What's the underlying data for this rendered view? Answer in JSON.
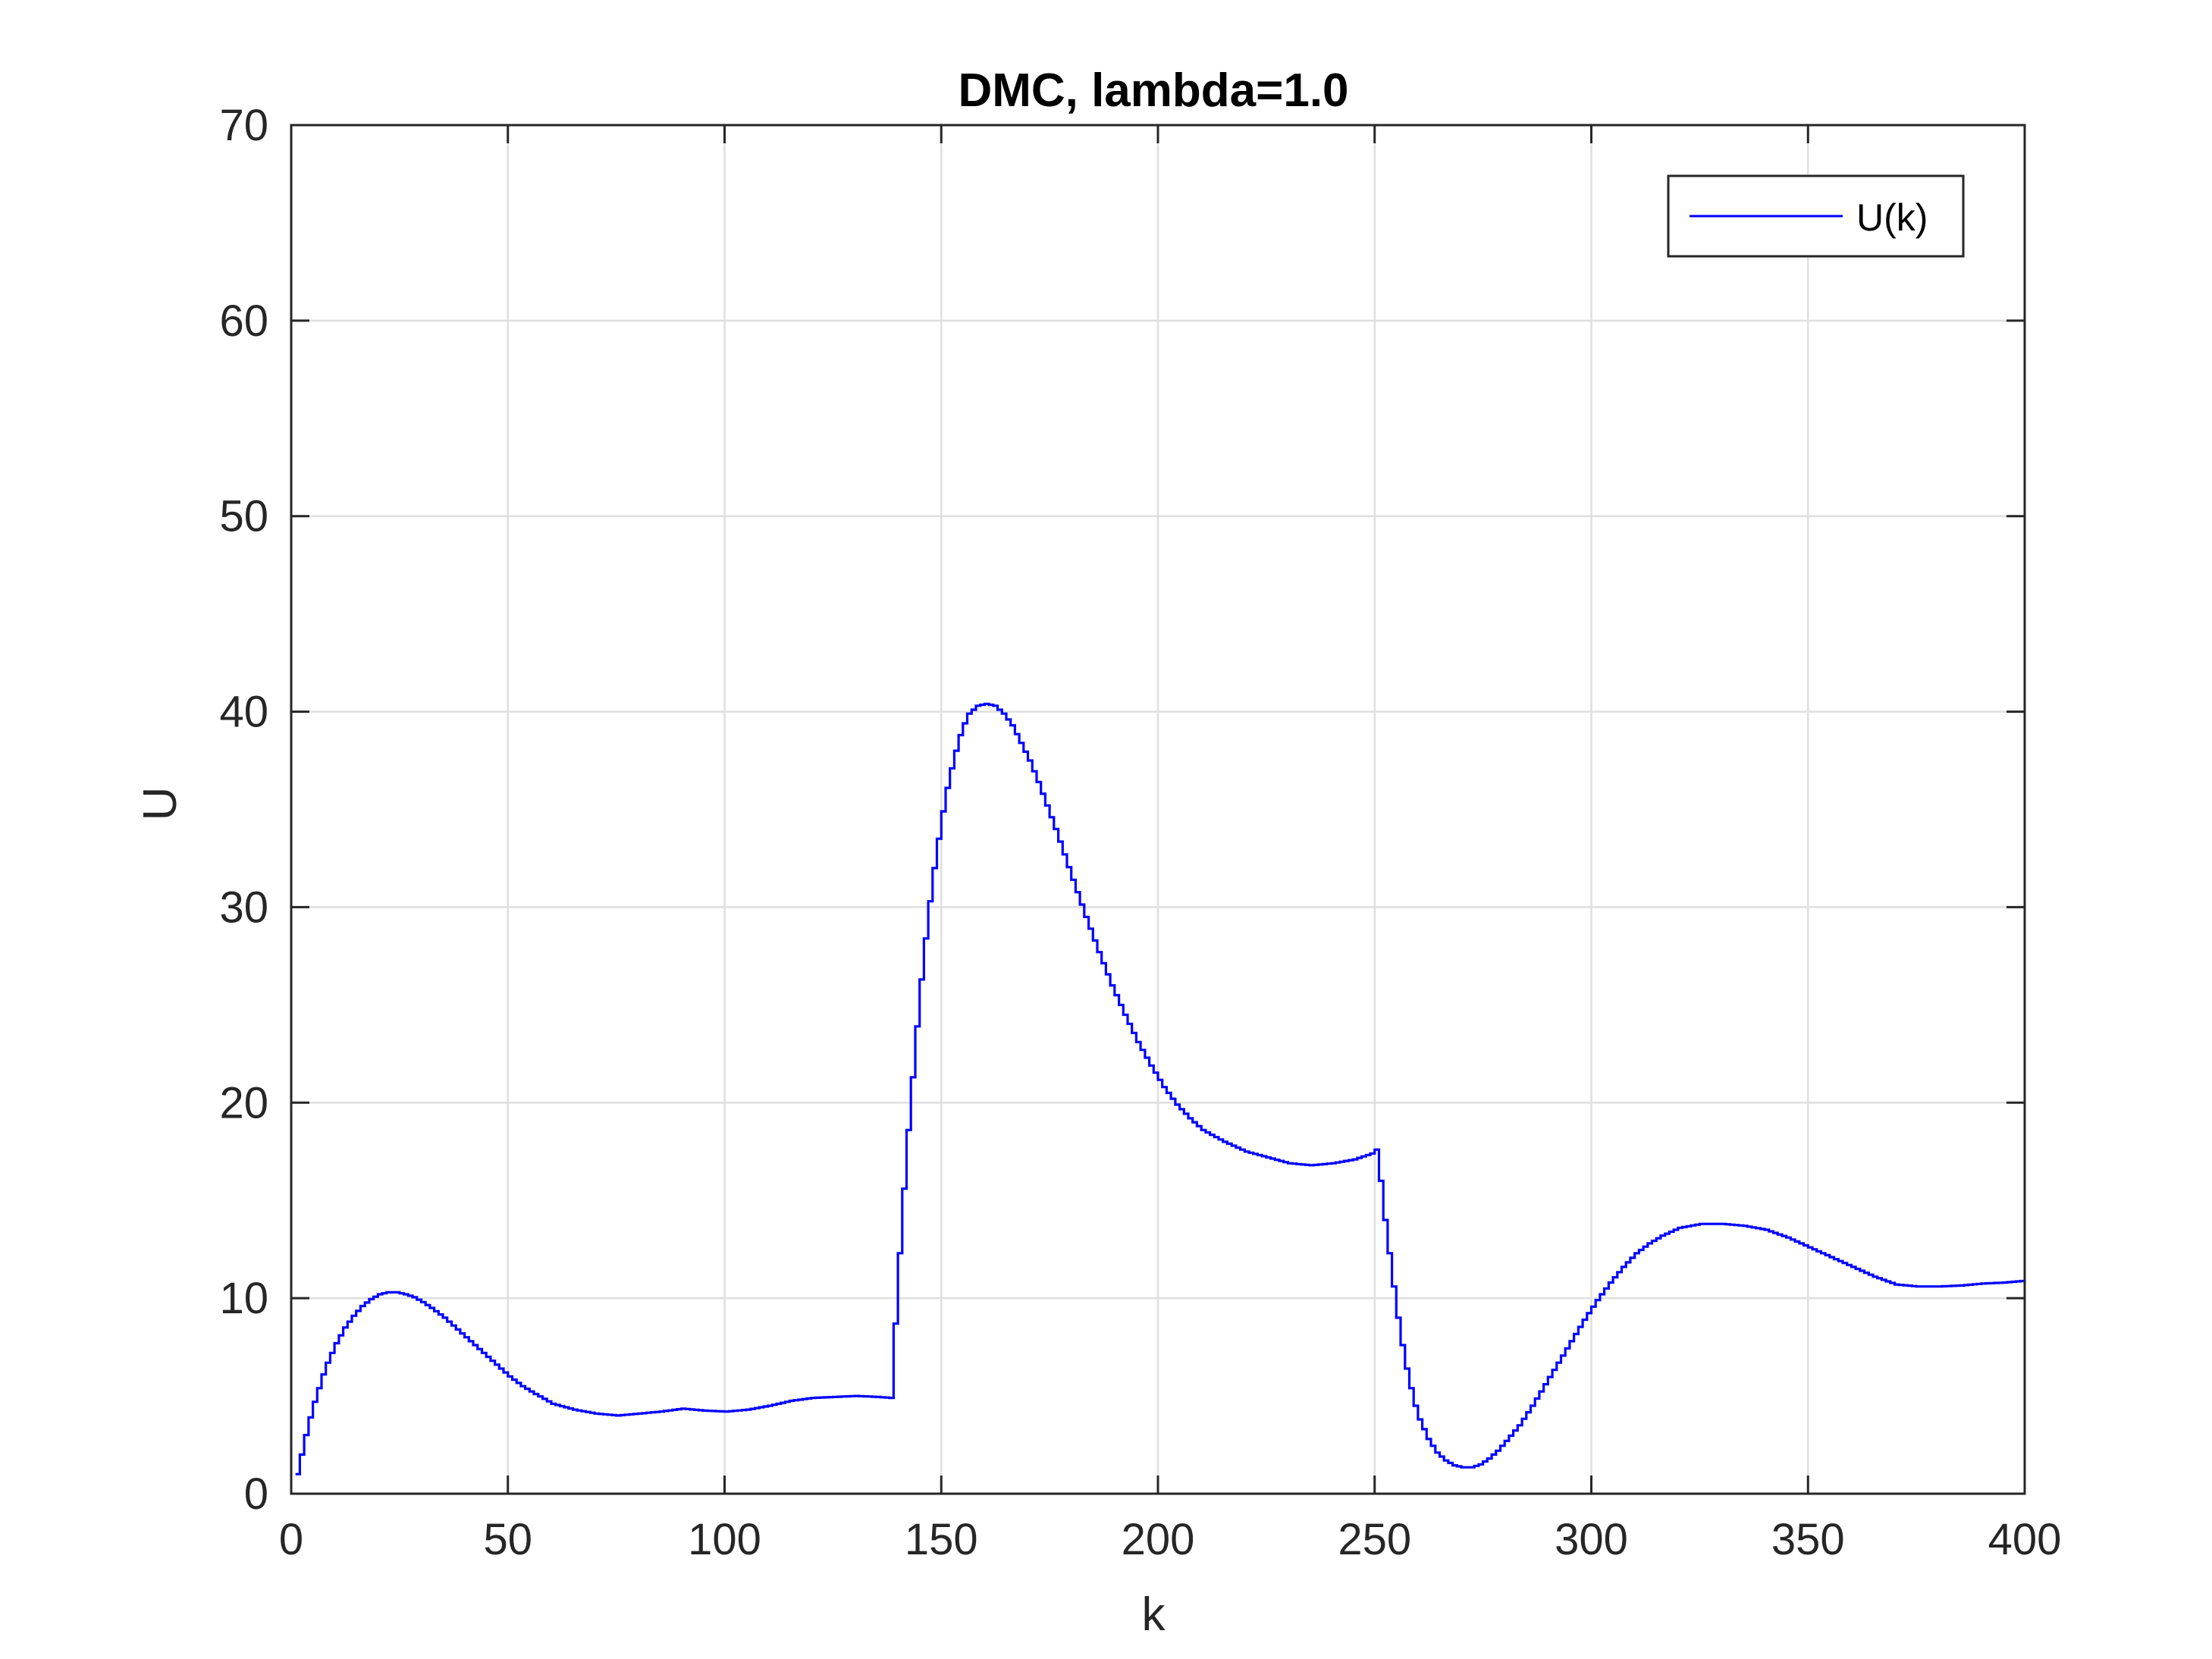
{
  "chart_data": {
    "type": "line",
    "title": "DMC, lambda=1.0",
    "xlabel": "k",
    "ylabel": "U",
    "xlim": [
      0,
      400
    ],
    "ylim": [
      0,
      70
    ],
    "xticks": [
      0,
      50,
      100,
      150,
      200,
      250,
      300,
      350,
      400
    ],
    "yticks": [
      0,
      10,
      20,
      30,
      40,
      50,
      60,
      70
    ],
    "grid": true,
    "legend": {
      "position": "top-right",
      "entries": [
        "U(k)"
      ]
    },
    "series": [
      {
        "name": "U(k)",
        "color": "#0000ff",
        "style": "stairs",
        "points": [
          [
            1,
            1.0
          ],
          [
            2,
            2.0
          ],
          [
            3,
            3.0
          ],
          [
            4,
            3.9
          ],
          [
            5,
            4.7
          ],
          [
            6,
            5.4
          ],
          [
            7,
            6.1
          ],
          [
            8,
            6.7
          ],
          [
            10,
            7.7
          ],
          [
            12,
            8.5
          ],
          [
            14,
            9.1
          ],
          [
            16,
            9.6
          ],
          [
            18,
            9.95
          ],
          [
            20,
            10.2
          ],
          [
            22,
            10.3
          ],
          [
            24,
            10.3
          ],
          [
            26,
            10.2
          ],
          [
            28,
            10.05
          ],
          [
            30,
            9.8
          ],
          [
            32,
            9.5
          ],
          [
            35,
            9.0
          ],
          [
            38,
            8.4
          ],
          [
            41,
            7.8
          ],
          [
            44,
            7.2
          ],
          [
            47,
            6.6
          ],
          [
            50,
            6.0
          ],
          [
            53,
            5.5
          ],
          [
            56,
            5.1
          ],
          [
            60,
            4.6
          ],
          [
            65,
            4.3
          ],
          [
            70,
            4.1
          ],
          [
            75,
            4.0
          ],
          [
            80,
            4.1
          ],
          [
            85,
            4.2
          ],
          [
            90,
            4.35
          ],
          [
            95,
            4.25
          ],
          [
            100,
            4.2
          ],
          [
            105,
            4.3
          ],
          [
            110,
            4.5
          ],
          [
            115,
            4.75
          ],
          [
            120,
            4.9
          ],
          [
            125,
            4.95
          ],
          [
            130,
            5.0
          ],
          [
            135,
            4.95
          ],
          [
            138,
            4.9
          ],
          [
            139,
            8.7
          ],
          [
            140,
            12.3
          ],
          [
            141,
            15.6
          ],
          [
            142,
            18.6
          ],
          [
            143,
            21.3
          ],
          [
            144,
            23.9
          ],
          [
            145,
            26.3
          ],
          [
            146,
            28.4
          ],
          [
            147,
            30.3
          ],
          [
            148,
            32.0
          ],
          [
            149,
            33.5
          ],
          [
            150,
            34.9
          ],
          [
            151,
            36.1
          ],
          [
            152,
            37.1
          ],
          [
            153,
            38.0
          ],
          [
            154,
            38.8
          ],
          [
            155,
            39.4
          ],
          [
            156,
            39.9
          ],
          [
            158,
            40.3
          ],
          [
            160,
            40.4
          ],
          [
            162,
            40.3
          ],
          [
            164,
            39.9
          ],
          [
            166,
            39.3
          ],
          [
            168,
            38.4
          ],
          [
            170,
            37.5
          ],
          [
            172,
            36.4
          ],
          [
            174,
            35.2
          ],
          [
            176,
            34.0
          ],
          [
            178,
            32.7
          ],
          [
            180,
            31.4
          ],
          [
            183,
            29.5
          ],
          [
            186,
            27.7
          ],
          [
            189,
            26.0
          ],
          [
            192,
            24.5
          ],
          [
            195,
            23.1
          ],
          [
            198,
            21.9
          ],
          [
            201,
            20.8
          ],
          [
            204,
            19.9
          ],
          [
            207,
            19.2
          ],
          [
            210,
            18.6
          ],
          [
            215,
            18.0
          ],
          [
            220,
            17.5
          ],
          [
            225,
            17.2
          ],
          [
            230,
            16.9
          ],
          [
            235,
            16.8
          ],
          [
            240,
            16.9
          ],
          [
            245,
            17.1
          ],
          [
            249,
            17.4
          ],
          [
            250,
            17.6
          ],
          [
            251,
            16.0
          ],
          [
            252,
            14.0
          ],
          [
            253,
            12.3
          ],
          [
            254,
            10.6
          ],
          [
            255,
            9.0
          ],
          [
            256,
            7.6
          ],
          [
            257,
            6.4
          ],
          [
            258,
            5.4
          ],
          [
            259,
            4.5
          ],
          [
            260,
            3.8
          ],
          [
            262,
            2.8
          ],
          [
            264,
            2.1
          ],
          [
            266,
            1.7
          ],
          [
            268,
            1.45
          ],
          [
            270,
            1.35
          ],
          [
            272,
            1.35
          ],
          [
            274,
            1.5
          ],
          [
            276,
            1.8
          ],
          [
            278,
            2.2
          ],
          [
            280,
            2.7
          ],
          [
            283,
            3.5
          ],
          [
            286,
            4.5
          ],
          [
            289,
            5.6
          ],
          [
            292,
            6.7
          ],
          [
            295,
            7.8
          ],
          [
            298,
            8.9
          ],
          [
            301,
            9.9
          ],
          [
            304,
            10.8
          ],
          [
            307,
            11.6
          ],
          [
            310,
            12.3
          ],
          [
            313,
            12.8
          ],
          [
            316,
            13.2
          ],
          [
            320,
            13.6
          ],
          [
            325,
            13.8
          ],
          [
            330,
            13.8
          ],
          [
            335,
            13.7
          ],
          [
            340,
            13.5
          ],
          [
            345,
            13.1
          ],
          [
            350,
            12.6
          ],
          [
            355,
            12.1
          ],
          [
            360,
            11.6
          ],
          [
            365,
            11.1
          ],
          [
            370,
            10.7
          ],
          [
            375,
            10.6
          ],
          [
            380,
            10.6
          ],
          [
            385,
            10.65
          ],
          [
            390,
            10.75
          ],
          [
            395,
            10.8
          ],
          [
            400,
            10.9
          ]
        ]
      }
    ]
  }
}
